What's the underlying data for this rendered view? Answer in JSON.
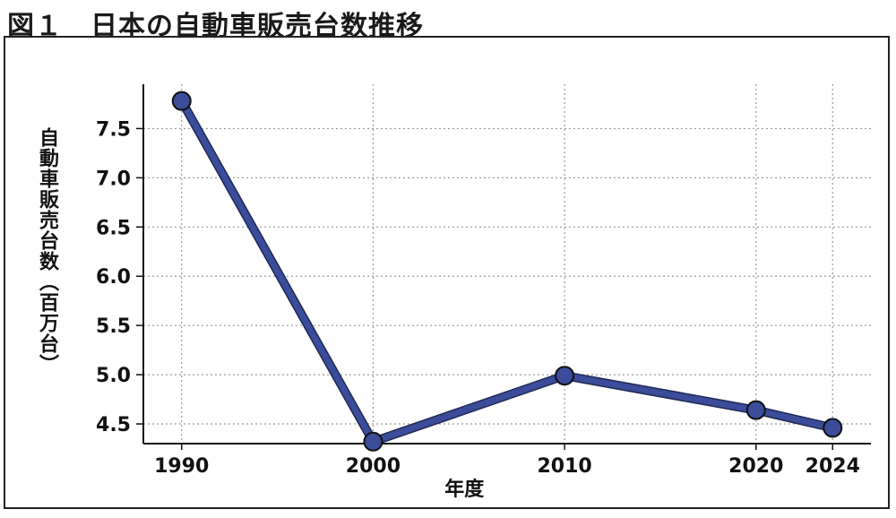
{
  "figure": {
    "title": "図１　日本の自動車販売台数推移"
  },
  "chart_data": {
    "type": "line",
    "title": "",
    "xlabel": "年度",
    "ylabel": "自動車販売台数（百万台）",
    "x": [
      1990,
      2000,
      2010,
      2020,
      2024
    ],
    "x_tick_labels": [
      "1990",
      "2000",
      "2010",
      "2020",
      "2024"
    ],
    "y_ticks": [
      4.5,
      5.0,
      5.5,
      6.0,
      6.5,
      7.0,
      7.5
    ],
    "y_tick_labels": [
      "4.5",
      "5.0",
      "5.5",
      "6.0",
      "6.5",
      "7.0",
      "7.5"
    ],
    "series": [
      {
        "values": [
          7.78,
          4.32,
          4.99,
          4.64,
          4.46
        ],
        "color": "#3a4c9a"
      }
    ],
    "xlim": [
      1988,
      2026
    ],
    "ylim": [
      4.3,
      7.95
    ],
    "grid": true,
    "legend": "none",
    "marker_color": "#3a4c9a",
    "line_color": "#3a4c9a"
  }
}
